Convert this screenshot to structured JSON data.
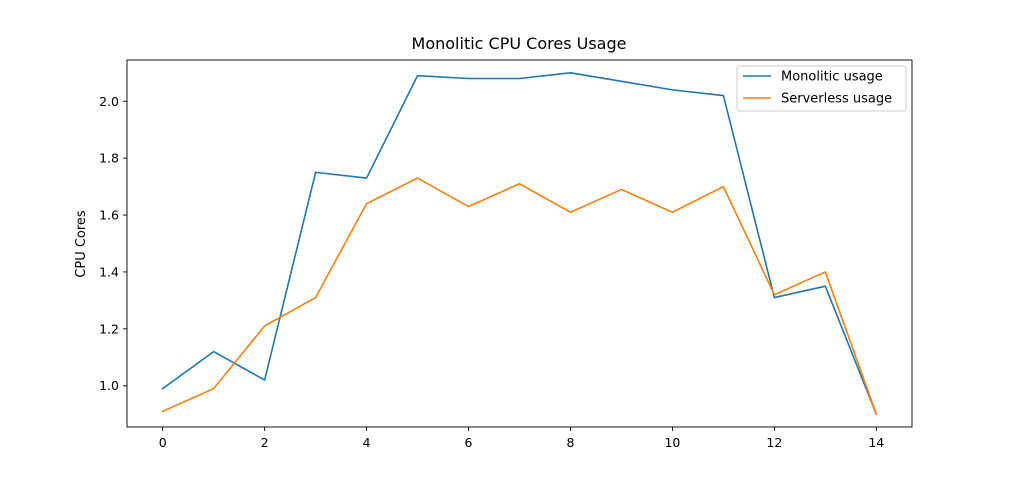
{
  "chart_data": {
    "type": "line",
    "title": "Monolitic CPU Cores Usage",
    "xlabel": "",
    "ylabel": "CPU Cores",
    "x": [
      0,
      1,
      2,
      3,
      4,
      5,
      6,
      7,
      8,
      9,
      10,
      11,
      12,
      13,
      14
    ],
    "xlim": [
      -0.7,
      14.7
    ],
    "ylim": [
      0.855,
      2.145
    ],
    "xticks": [
      0,
      2,
      4,
      6,
      8,
      10,
      12,
      14
    ],
    "yticks": [
      1.0,
      1.2,
      1.4,
      1.6,
      1.8,
      2.0
    ],
    "ytick_labels": [
      "1.0",
      "1.2",
      "1.4",
      "1.6",
      "1.8",
      "2.0"
    ],
    "grid": false,
    "legend_position": "top-right",
    "series": [
      {
        "name": "Monolitic usage",
        "color": "#1f77b4",
        "values": [
          0.99,
          1.12,
          1.02,
          1.75,
          1.73,
          2.09,
          2.08,
          2.08,
          2.1,
          2.07,
          2.04,
          2.02,
          1.31,
          1.35,
          0.9
        ]
      },
      {
        "name": "Serverless usage",
        "color": "#ff7f0e",
        "values": [
          0.91,
          0.99,
          1.21,
          1.31,
          1.64,
          1.73,
          1.63,
          1.71,
          1.61,
          1.69,
          1.61,
          1.7,
          1.32,
          1.4,
          0.9
        ]
      }
    ]
  }
}
